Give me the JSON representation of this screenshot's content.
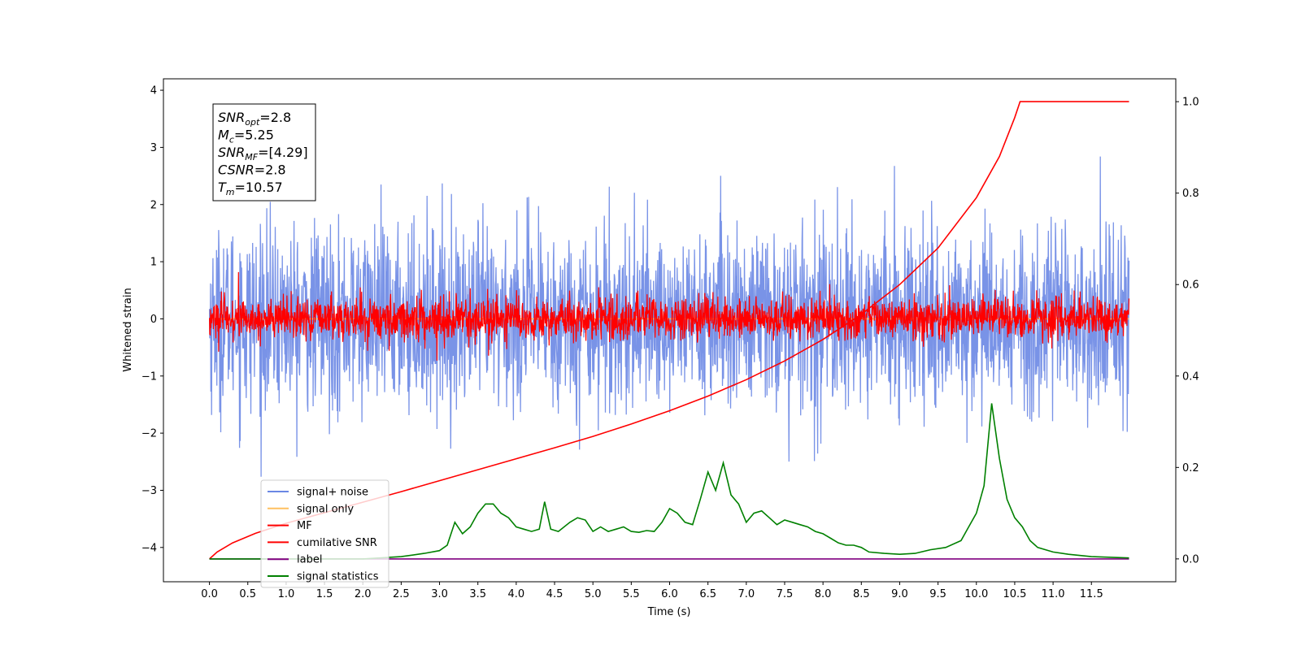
{
  "chart_data": {
    "type": "line",
    "xlabel": "Time (s)",
    "ylabel": "Whitened strain",
    "xlim": [
      -0.6,
      12.6
    ],
    "ylim": [
      -4.6,
      4.2
    ],
    "y2lim": [
      -0.05,
      1.05
    ],
    "x_ticks": [
      0.0,
      0.5,
      1.0,
      1.5,
      2.0,
      2.5,
      3.0,
      3.5,
      4.0,
      4.5,
      5.0,
      5.5,
      6.0,
      6.5,
      7.0,
      7.5,
      8.0,
      8.5,
      9.0,
      9.5,
      10.0,
      10.5,
      11.0,
      11.5
    ],
    "x_tick_labels": [
      "0.0",
      "0.5",
      "1.0",
      "1.5",
      "2.0",
      "2.5",
      "3.0",
      "3.5",
      "4.0",
      "4.5",
      "5.0",
      "5.5",
      "6.0",
      "6.5",
      "7.0",
      "7.5",
      "8.0",
      "8.5",
      "9.0",
      "9.5",
      "10.0",
      "10.5",
      "11.0",
      "11.5"
    ],
    "y_ticks": [
      -4,
      -3,
      -2,
      -1,
      0,
      1,
      2,
      3,
      4
    ],
    "y_tick_labels": [
      "−4",
      "−3",
      "−2",
      "−1",
      "0",
      "1",
      "2",
      "3",
      "4"
    ],
    "y2_ticks": [
      0.0,
      0.2,
      0.4,
      0.6,
      0.8,
      1.0
    ],
    "y2_tick_labels": [
      "0.0",
      "0.2",
      "0.4",
      "0.6",
      "0.8",
      "1.0"
    ],
    "grid": false,
    "legend_position": "lower-left",
    "annotation": {
      "lines": [
        {
          "main": "SNR",
          "sub": "opt",
          "value": "=2.8"
        },
        {
          "main": "M",
          "sub": "c",
          "value": "=5.25"
        },
        {
          "main": "SNR",
          "sub": "MF",
          "value": "=[4.29]"
        },
        {
          "main": "CSNR",
          "sub": "",
          "value": "=2.8"
        },
        {
          "main": "T",
          "sub": "m",
          "value": "=10.57"
        }
      ]
    },
    "series": [
      {
        "name": "signal+ noise",
        "axis": "left",
        "color": "#6a87e4",
        "kind": "noise",
        "x_range": [
          0.0,
          11.99
        ],
        "typical_amplitude": 1.5,
        "extrema": [
          3.8,
          -3.9
        ]
      },
      {
        "name": "signal only",
        "axis": "left",
        "color": "#ffc060",
        "kind": "flat",
        "x_range": [
          0.0,
          11.99
        ],
        "values_note": "~0"
      },
      {
        "name": "MF",
        "axis": "left",
        "color": "#ff0000",
        "kind": "noise",
        "x_range": [
          0.0,
          11.99
        ],
        "typical_amplitude": 0.35,
        "extrema": [
          0.85,
          -0.4
        ]
      },
      {
        "name": "cumilative SNR",
        "axis": "right",
        "color": "#ff0000",
        "x": [
          0.0,
          0.1,
          0.3,
          0.6,
          1.0,
          1.5,
          2.0,
          2.5,
          3.0,
          3.5,
          4.0,
          4.5,
          5.0,
          5.5,
          6.0,
          6.5,
          7.0,
          7.5,
          8.0,
          8.5,
          9.0,
          9.5,
          10.0,
          10.3,
          10.5,
          10.57,
          11.0,
          11.5,
          11.99
        ],
        "y": [
          0.0,
          0.015,
          0.035,
          0.056,
          0.078,
          0.101,
          0.124,
          0.147,
          0.171,
          0.195,
          0.219,
          0.243,
          0.268,
          0.295,
          0.324,
          0.356,
          0.392,
          0.433,
          0.48,
          0.535,
          0.6,
          0.68,
          0.79,
          0.88,
          0.965,
          1.0,
          1.0,
          1.0,
          1.0
        ]
      },
      {
        "name": "label",
        "axis": "right",
        "color": "#800080",
        "x": [
          0.0,
          11.99
        ],
        "y": [
          0.0,
          0.0
        ]
      },
      {
        "name": "signal statistics",
        "axis": "right",
        "color": "#008000",
        "x": [
          0.0,
          2.0,
          2.5,
          2.8,
          3.0,
          3.1,
          3.2,
          3.3,
          3.4,
          3.5,
          3.6,
          3.7,
          3.8,
          3.9,
          4.0,
          4.1,
          4.2,
          4.3,
          4.37,
          4.45,
          4.55,
          4.7,
          4.8,
          4.9,
          5.0,
          5.1,
          5.2,
          5.3,
          5.4,
          5.5,
          5.6,
          5.7,
          5.8,
          5.9,
          6.0,
          6.1,
          6.2,
          6.3,
          6.4,
          6.5,
          6.6,
          6.7,
          6.8,
          6.9,
          7.0,
          7.1,
          7.2,
          7.3,
          7.4,
          7.5,
          7.6,
          7.7,
          7.8,
          7.9,
          8.0,
          8.1,
          8.2,
          8.3,
          8.4,
          8.5,
          8.6,
          8.8,
          9.0,
          9.2,
          9.4,
          9.6,
          9.8,
          9.9,
          10.0,
          10.1,
          10.2,
          10.3,
          10.4,
          10.5,
          10.6,
          10.7,
          10.8,
          11.0,
          11.2,
          11.5,
          11.99
        ],
        "y": [
          0.0,
          0.0,
          0.005,
          0.012,
          0.018,
          0.03,
          0.08,
          0.055,
          0.07,
          0.1,
          0.12,
          0.12,
          0.1,
          0.09,
          0.07,
          0.065,
          0.06,
          0.065,
          0.125,
          0.065,
          0.06,
          0.08,
          0.09,
          0.085,
          0.06,
          0.07,
          0.06,
          0.065,
          0.07,
          0.06,
          0.058,
          0.062,
          0.06,
          0.08,
          0.11,
          0.1,
          0.08,
          0.075,
          0.13,
          0.19,
          0.15,
          0.21,
          0.14,
          0.12,
          0.08,
          0.1,
          0.105,
          0.09,
          0.075,
          0.085,
          0.08,
          0.075,
          0.07,
          0.06,
          0.055,
          0.045,
          0.035,
          0.03,
          0.03,
          0.025,
          0.015,
          0.012,
          0.01,
          0.012,
          0.02,
          0.025,
          0.04,
          0.07,
          0.1,
          0.16,
          0.34,
          0.22,
          0.13,
          0.09,
          0.07,
          0.04,
          0.025,
          0.015,
          0.01,
          0.005,
          0.002
        ]
      }
    ]
  }
}
